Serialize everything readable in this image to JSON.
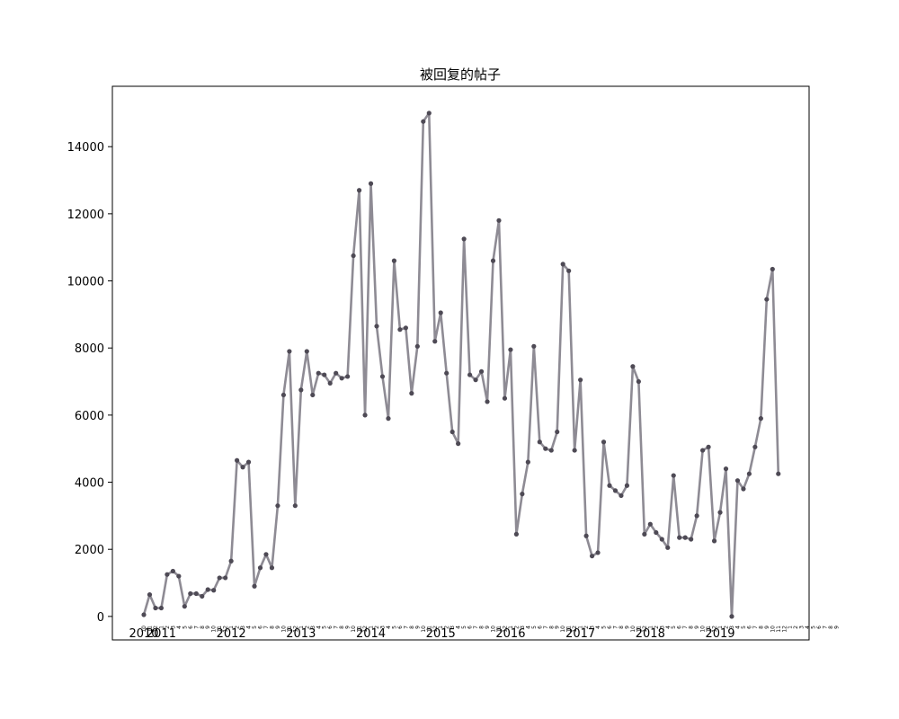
{
  "chart_data": {
    "type": "line",
    "title": "被回复的帖子",
    "xlabel": "",
    "ylabel": "",
    "ylim": [
      -700,
      15800
    ],
    "yticks": [
      0,
      2000,
      4000,
      6000,
      8000,
      10000,
      12000,
      14000
    ],
    "grid": false,
    "line_color": "#8e8b94",
    "marker_color": "#4e4a55",
    "x_start_year": 2010,
    "x_start_month": 10,
    "year_labels": [
      {
        "label": "2010",
        "index": 0
      },
      {
        "label": "2011",
        "index": 3
      },
      {
        "label": "2012",
        "index": 15
      },
      {
        "label": "2013",
        "index": 27
      },
      {
        "label": "2014",
        "index": 39
      },
      {
        "label": "2015",
        "index": 51
      },
      {
        "label": "2016",
        "index": 63
      },
      {
        "label": "2017",
        "index": 75
      },
      {
        "label": "2018",
        "index": 87
      },
      {
        "label": "2019",
        "index": 99
      }
    ],
    "x_month_labels": [
      "10",
      "11",
      "12",
      "1",
      "2",
      "3",
      "4",
      "5",
      "6",
      "7",
      "8",
      "9",
      "10",
      "11",
      "12",
      "1",
      "2",
      "3",
      "4",
      "5",
      "6",
      "7",
      "8",
      "9",
      "10",
      "11",
      "12",
      "1",
      "2",
      "3",
      "4",
      "5",
      "6",
      "7",
      "8",
      "9",
      "10",
      "11",
      "12",
      "1",
      "2",
      "3",
      "4",
      "5",
      "6",
      "7",
      "8",
      "9",
      "10",
      "11",
      "12",
      "1",
      "2",
      "3",
      "4",
      "5",
      "6",
      "7",
      "8",
      "9",
      "10",
      "11",
      "12",
      "1",
      "2",
      "3",
      "4",
      "5",
      "6",
      "7",
      "8",
      "9",
      "10",
      "11",
      "12",
      "1",
      "2",
      "3",
      "4",
      "5",
      "6",
      "7",
      "8",
      "9",
      "10",
      "11",
      "12",
      "1",
      "2",
      "3",
      "4",
      "5",
      "6",
      "7",
      "8",
      "9",
      "10",
      "11",
      "12",
      "1",
      "2",
      "3",
      "4",
      "5",
      "6",
      "7",
      "8",
      "9",
      "10",
      "11",
      "12",
      "1",
      "2",
      "3",
      "4",
      "5",
      "6",
      "7",
      "8",
      "9"
    ],
    "values": [
      50,
      650,
      250,
      250,
      1250,
      1350,
      1200,
      300,
      680,
      680,
      600,
      800,
      780,
      1150,
      1150,
      1650,
      4650,
      4450,
      4600,
      900,
      1450,
      1850,
      1450,
      3300,
      6600,
      7900,
      3300,
      6750,
      7900,
      6600,
      7250,
      7200,
      6950,
      7250,
      7100,
      7150,
      10750,
      12700,
      6000,
      12900,
      8650,
      7150,
      5900,
      10600,
      8550,
      8600,
      6650,
      8050,
      14750,
      15000,
      8200,
      9050,
      7250,
      5500,
      5150,
      11250,
      7200,
      7050,
      7300,
      6400,
      10600,
      11800,
      6500,
      7950,
      2450,
      3650,
      4600,
      8050,
      5200,
      5000,
      4950,
      5500,
      10500,
      10300,
      4950,
      7050,
      2400,
      1800,
      1900,
      5200,
      3900,
      3750,
      3600,
      3900,
      7450,
      7000,
      2450,
      2750,
      2500,
      2300,
      2050,
      4200,
      2350,
      2350,
      2300,
      3000,
      4950,
      5050,
      2250,
      3100,
      4400,
      0,
      4050,
      3800,
      4250,
      5050,
      5900,
      9450,
      10350,
      4250
    ]
  }
}
